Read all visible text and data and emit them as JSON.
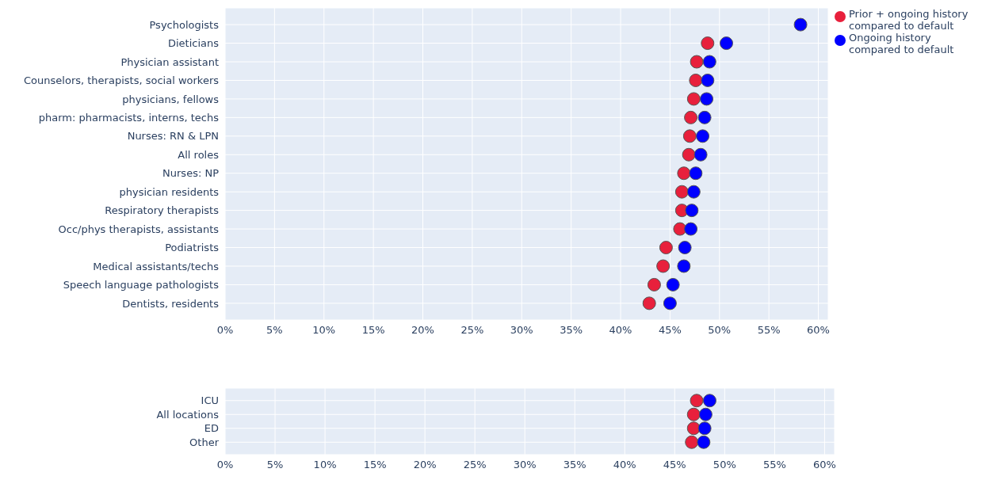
{
  "chart_data": [
    {
      "type": "scatter",
      "orientation": "horizontal",
      "categories": [
        "Psychologists",
        "Dieticians",
        "Physician assistant",
        "Counselors, therapists, social workers",
        "physicians, fellows",
        "pharm: pharmacists, interns, techs",
        "Nurses: RN & LPN",
        "All roles",
        "Nurses: NP",
        "physician residents",
        "Respiratory therapists",
        "Occ/phys therapists, assistants",
        "Podiatrists",
        "Medical assistants/techs",
        "Speech language pathologists",
        "Dentists, residents"
      ],
      "series": [
        {
          "name": "Prior + ongoing history compared to default",
          "color": "#e8203c",
          "values": [
            null,
            48.8,
            47.7,
            47.6,
            47.4,
            47.1,
            47.0,
            46.9,
            46.4,
            46.2,
            46.2,
            46.0,
            44.6,
            44.3,
            43.4,
            42.9
          ]
        },
        {
          "name": "Ongoing history compared to default",
          "color": "#0000ff",
          "values": [
            58.2,
            50.7,
            49.0,
            48.8,
            48.7,
            48.5,
            48.3,
            48.1,
            47.6,
            47.4,
            47.2,
            47.1,
            46.5,
            46.4,
            45.3,
            45.0
          ]
        }
      ],
      "xlim": [
        0,
        61
      ],
      "xticks": [
        {
          "value": 0,
          "label": "0%"
        },
        {
          "value": 5,
          "label": "5%"
        },
        {
          "value": 10,
          "label": "10%"
        },
        {
          "value": 15,
          "label": "15%"
        },
        {
          "value": 20,
          "label": "20%"
        },
        {
          "value": 25,
          "label": "25%"
        },
        {
          "value": 30,
          "label": "30%"
        },
        {
          "value": 35,
          "label": "35%"
        },
        {
          "value": 40,
          "label": "40%"
        },
        {
          "value": 45,
          "label": "45%"
        },
        {
          "value": 50,
          "label": "50%"
        },
        {
          "value": 55,
          "label": "55%"
        },
        {
          "value": 60,
          "label": "60%"
        }
      ],
      "grid": true,
      "legend": "top right",
      "marker": "circle"
    },
    {
      "type": "scatter",
      "orientation": "horizontal",
      "categories": [
        "ICU",
        "All locations",
        "ED",
        "Other"
      ],
      "series": [
        {
          "color": "#e8203c",
          "values": [
            47.2,
            46.9,
            46.9,
            46.7
          ]
        },
        {
          "color": "#0000ff",
          "values": [
            48.5,
            48.1,
            48.0,
            47.9
          ]
        }
      ],
      "xlim": [
        0,
        61
      ],
      "xticks": [
        {
          "value": 0,
          "label": "0%"
        },
        {
          "value": 5,
          "label": "5%"
        },
        {
          "value": 10,
          "label": "10%"
        },
        {
          "value": 15,
          "label": "15%"
        },
        {
          "value": 20,
          "label": "20%"
        },
        {
          "value": 25,
          "label": "25%"
        },
        {
          "value": 30,
          "label": "30%"
        },
        {
          "value": 35,
          "label": "35%"
        },
        {
          "value": 40,
          "label": "40%"
        },
        {
          "value": 45,
          "label": "45%"
        },
        {
          "value": 50,
          "label": "50%"
        },
        {
          "value": 55,
          "label": "55%"
        },
        {
          "value": 60,
          "label": "60%"
        }
      ],
      "grid": true,
      "marker": "circle"
    }
  ]
}
